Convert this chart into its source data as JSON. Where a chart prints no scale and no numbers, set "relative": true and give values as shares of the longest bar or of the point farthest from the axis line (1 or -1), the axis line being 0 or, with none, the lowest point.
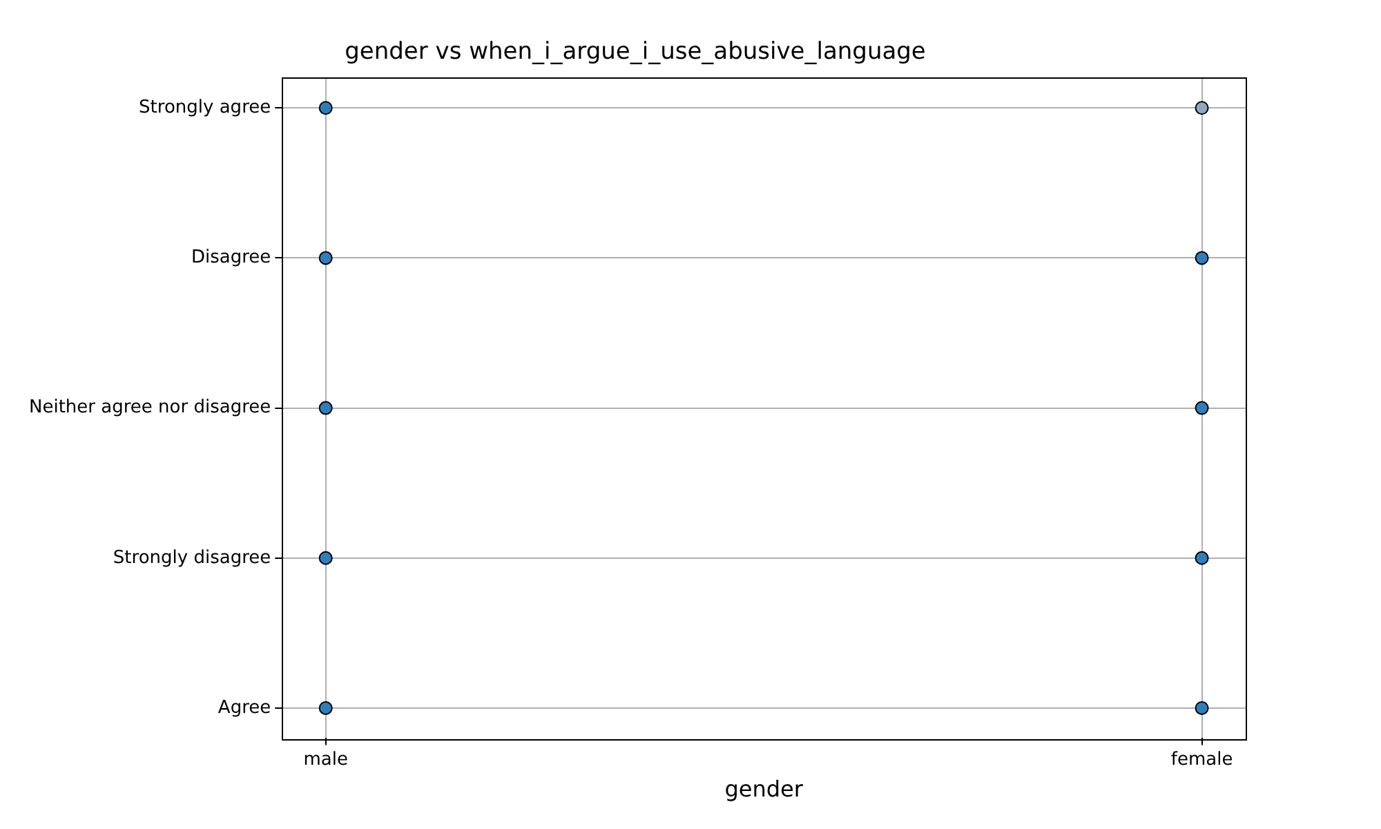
{
  "chart_data": {
    "type": "scatter",
    "title": "gender vs when_i_argue_i_use_abusive_language",
    "xlabel": "gender",
    "categories": [
      "male",
      "female"
    ],
    "y_categories": [
      "Strongly agree",
      "Disagree",
      "Neither agree nor disagree",
      "Strongly disagree",
      "Agree"
    ],
    "relative": true,
    "series": [
      {
        "colors": [
          "#2f7ebc",
          "#2f7ebc",
          "#2f7ebc",
          "#2f7ebc",
          "#2f7ebc",
          "#8fa8bd",
          "#2f7ebc",
          "#2f7ebc",
          "#2f7ebc",
          "#2f7ebc"
        ],
        "x": [
          "male",
          "male",
          "male",
          "male",
          "male",
          "female",
          "female",
          "female",
          "female",
          "female"
        ],
        "values": [
          1,
          0.75,
          0.5,
          0.25,
          0,
          1,
          0.75,
          0.5,
          0.25,
          0
        ]
      }
    ],
    "grid": true,
    "legend": false,
    "marker": "circle"
  }
}
